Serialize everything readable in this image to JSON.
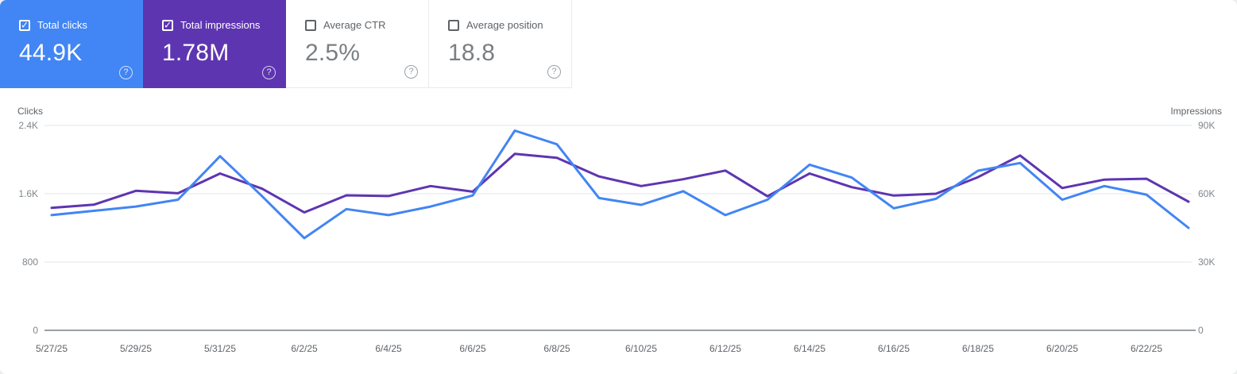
{
  "cards": [
    {
      "label": "Total clicks",
      "value": "44.9K",
      "selected": true,
      "color": "#4285f4"
    },
    {
      "label": "Total impressions",
      "value": "1.78M",
      "selected": true,
      "color": "#5e35b1"
    },
    {
      "label": "Average CTR",
      "value": "2.5%",
      "selected": false,
      "color": "#ffffff"
    },
    {
      "label": "Average position",
      "value": "18.8",
      "selected": false,
      "color": "#ffffff"
    }
  ],
  "icons": {
    "check_glyph": "✓",
    "help_glyph": "?"
  },
  "chart_data": {
    "type": "line",
    "x": [
      "5/27/25",
      "5/28/25",
      "5/29/25",
      "5/30/25",
      "5/31/25",
      "6/1/25",
      "6/2/25",
      "6/3/25",
      "6/4/25",
      "6/5/25",
      "6/6/25",
      "6/7/25",
      "6/8/25",
      "6/9/25",
      "6/10/25",
      "6/11/25",
      "6/12/25",
      "6/13/25",
      "6/14/25",
      "6/15/25",
      "6/16/25",
      "6/17/25",
      "6/18/25",
      "6/19/25",
      "6/20/25",
      "6/21/25",
      "6/22/25",
      "6/23/25"
    ],
    "x_tick_labels": [
      "5/27/25",
      "5/29/25",
      "5/31/25",
      "6/2/25",
      "6/4/25",
      "6/6/25",
      "6/8/25",
      "6/10/25",
      "6/12/25",
      "6/14/25",
      "6/16/25",
      "6/18/25",
      "6/20/25",
      "6/22/25"
    ],
    "series": [
      {
        "name": "Clicks",
        "axis": "left",
        "color": "#4285f4",
        "values": [
          1350,
          1400,
          1450,
          1530,
          2040,
          1570,
          1080,
          1420,
          1350,
          1450,
          1580,
          2340,
          2180,
          1550,
          1470,
          1630,
          1350,
          1530,
          1940,
          1790,
          1430,
          1540,
          1870,
          1960,
          1530,
          1690,
          1590,
          1200
        ]
      },
      {
        "name": "Impressions",
        "axis": "right",
        "color": "#5e35b1",
        "values": [
          53800,
          55200,
          61300,
          60200,
          68900,
          62200,
          51800,
          59300,
          59000,
          63400,
          60900,
          77500,
          75800,
          67600,
          63400,
          66400,
          70200,
          58900,
          68900,
          62900,
          59200,
          60000,
          67300,
          76800,
          62500,
          66200,
          66600,
          56500
        ]
      }
    ],
    "left_axis": {
      "title": "Clicks",
      "ticks": [
        "0",
        "800",
        "1.6K",
        "2.4K"
      ],
      "min": 0,
      "max": 2400
    },
    "right_axis": {
      "title": "Impressions",
      "ticks": [
        "0",
        "30K",
        "60K",
        "90K"
      ],
      "min": 0,
      "max": 90000
    },
    "grid": true,
    "legend_position": "none",
    "grid_color": "#e8eaed",
    "baseline_color": "#9aa0a6"
  }
}
